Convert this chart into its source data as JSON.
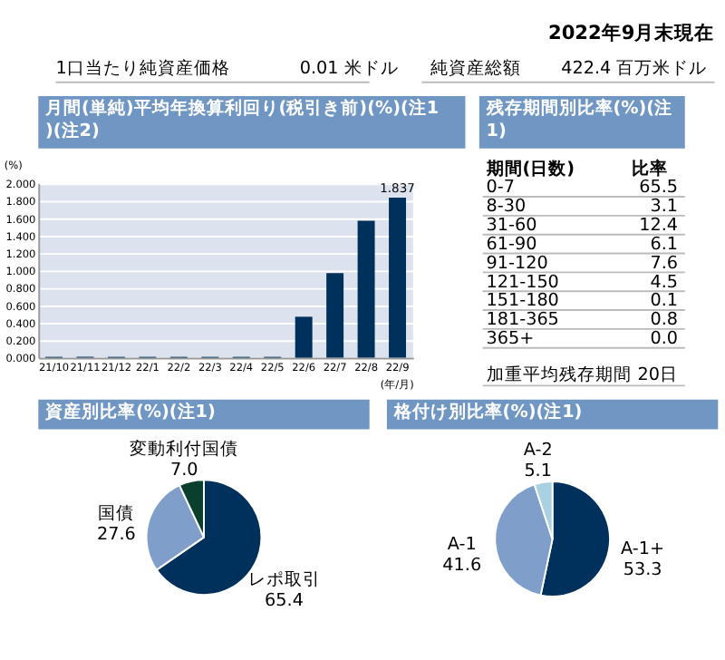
{
  "chart_data": [
    {
      "type": "other",
      "annotations": [
        "2022年9月末現在",
        "1口当たり純資産価格",
        "0.01 米ドル",
        "純資産総額",
        "422.4 百万米ドル"
      ]
    },
    {
      "type": "bar",
      "title": "月間(単純)平均年換算利回り(税引き前)(%)(注1)(注2)",
      "ylabel": "(%)",
      "xlabel": "(年/月)",
      "categories": [
        "21/10",
        "21/11",
        "21/12",
        "22/1",
        "22/2",
        "22/3",
        "22/4",
        "22/5",
        "22/6",
        "22/7",
        "22/8",
        "22/9"
      ],
      "values": [
        0.01,
        0.01,
        0.01,
        0.01,
        0.01,
        0.01,
        0.01,
        0.01,
        0.47,
        0.97,
        1.57,
        1.837
      ],
      "value_labels": [
        null,
        null,
        null,
        null,
        null,
        null,
        null,
        null,
        null,
        null,
        null,
        "1.837"
      ],
      "color": "#00305c",
      "ylim": [
        0,
        2
      ],
      "yticks": [
        {
          "value": 0,
          "label": "0.000"
        },
        {
          "value": 0.2,
          "label": "0.200"
        },
        {
          "value": 0.4,
          "label": "0.400"
        },
        {
          "value": 0.6,
          "label": "0.600"
        },
        {
          "value": 0.8,
          "label": "0.800"
        },
        {
          "value": 1,
          "label": "1.000"
        },
        {
          "value": 1.2,
          "label": "1.200"
        },
        {
          "value": 1.4,
          "label": "1.400"
        },
        {
          "value": 1.6,
          "label": "1.600"
        },
        {
          "value": 1.8,
          "label": "1.800"
        },
        {
          "value": 2,
          "label": "2.000"
        }
      ],
      "grid": "y"
    },
    {
      "type": "other",
      "title": "残存期間別比率(%)(注1)",
      "categories": [
        "0-7",
        "8-30",
        "31-60",
        "61-90",
        "91-120",
        "121-150",
        "151-180",
        "181-365",
        "365+"
      ],
      "values": [
        65.5,
        3.1,
        12.4,
        6.1,
        7.6,
        4.5,
        0.1,
        0.8,
        0.0
      ],
      "value_labels": [
        "65.5",
        "3.1",
        "12.4",
        "6.1",
        "7.6",
        "4.5",
        "0.1",
        "0.8",
        "0.0"
      ],
      "annotations": [
        "期間(日数)",
        "比率",
        "加重平均残存期間",
        "20日"
      ]
    },
    {
      "type": "pie",
      "title": "資産別比率(%)(注1)",
      "categories": [
        "レポ取引",
        "国債",
        "変動利付国債"
      ],
      "values": [
        65.4,
        27.6,
        7.0
      ],
      "value_labels": [
        "65.4",
        "27.6",
        "7.0"
      ],
      "colors": [
        "#00305c",
        "#7f9fca",
        "#0a3f2e"
      ]
    },
    {
      "type": "pie",
      "title": "格付け別比率(%)(注1)",
      "categories": [
        "A-1+",
        "A-1",
        "A-2"
      ],
      "values": [
        53.3,
        41.6,
        5.1
      ],
      "value_labels": [
        "53.3",
        "41.6",
        "5.1"
      ],
      "colors": [
        "#00305c",
        "#7f9fca",
        "#a9d1e2"
      ]
    }
  ]
}
